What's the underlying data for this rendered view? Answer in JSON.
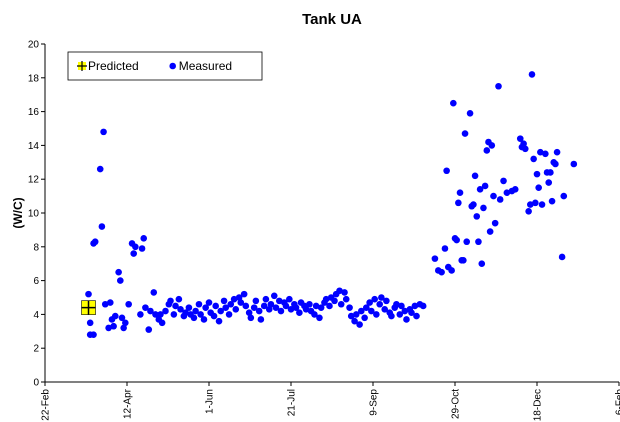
{
  "chart_data": {
    "type": "scatter",
    "title": "Tank UA",
    "y_label": "(W/C)",
    "xlim": [
      0,
      343
    ],
    "xticks": [
      {
        "value": 0,
        "label": "22-Feb"
      },
      {
        "value": 49,
        "label": "12-Apr"
      },
      {
        "value": 98,
        "label": "1-Jun"
      },
      {
        "value": 147,
        "label": "21-Jul"
      },
      {
        "value": 196,
        "label": "9-Sep"
      },
      {
        "value": 245,
        "label": "29-Oct"
      },
      {
        "value": 294,
        "label": "18-Dec"
      },
      {
        "value": 343,
        "label": "6-Feb"
      }
    ],
    "ylim": [
      0,
      20
    ],
    "yticks": [
      0,
      2,
      4,
      6,
      8,
      10,
      12,
      14,
      16,
      18,
      20
    ],
    "grid": false,
    "legend": "upper left",
    "series": [
      {
        "name": "Predicted",
        "color": "#ffff00",
        "marker": "plus-square",
        "x": [
          26
        ],
        "values": [
          4.4
        ]
      },
      {
        "name": "Measured",
        "color": "#0000ff",
        "marker": "circle",
        "x": [
          26,
          27,
          29,
          27,
          29,
          30,
          33,
          35,
          34,
          36,
          39,
          38,
          40,
          41,
          42,
          44,
          45,
          46,
          47,
          48,
          50,
          52,
          53,
          54,
          58,
          59,
          57,
          60,
          62,
          63,
          65,
          66,
          68,
          69,
          70,
          72,
          74,
          75,
          77,
          78,
          80,
          81,
          83,
          84,
          86,
          87,
          89,
          90,
          92,
          93,
          95,
          96,
          98,
          99,
          101,
          102,
          104,
          105,
          107,
          108,
          110,
          111,
          113,
          114,
          116,
          117,
          119,
          120,
          122,
          123,
          125,
          126,
          128,
          129,
          131,
          132,
          134,
          135,
          137,
          138,
          140,
          141,
          143,
          144,
          146,
          147,
          149,
          150,
          152,
          153,
          155,
          156,
          158,
          159,
          161,
          162,
          164,
          165,
          167,
          168,
          170,
          171,
          173,
          174,
          176,
          177,
          179,
          180,
          182,
          183,
          185,
          186,
          188,
          189,
          191,
          192,
          194,
          195,
          197,
          198,
          200,
          201,
          203,
          204,
          206,
          207,
          209,
          210,
          212,
          213,
          215,
          216,
          218,
          219,
          221,
          222,
          224,
          226,
          233,
          235,
          237,
          239,
          240,
          241,
          243,
          244,
          245,
          246,
          247,
          248,
          249,
          250,
          251,
          252,
          254,
          255,
          256,
          257,
          258,
          259,
          260,
          261,
          262,
          263,
          264,
          265,
          266,
          267,
          268,
          269,
          271,
          272,
          274,
          276,
          279,
          281,
          284,
          285,
          286,
          287,
          289,
          290,
          291,
          292,
          293,
          294,
          295,
          296,
          297,
          299,
          300,
          301,
          302,
          303,
          304,
          305,
          306,
          309,
          310,
          316
        ],
        "values": [
          5.2,
          2.8,
          2.8,
          3.5,
          8.2,
          8.3,
          12.6,
          14.8,
          9.2,
          4.6,
          4.7,
          3.2,
          3.7,
          3.3,
          3.9,
          6.5,
          6.0,
          3.8,
          3.2,
          3.5,
          4.6,
          8.2,
          7.6,
          8.0,
          7.9,
          8.5,
          4.0,
          4.4,
          3.1,
          4.2,
          5.3,
          4.0,
          3.7,
          4.0,
          3.5,
          4.2,
          4.6,
          4.8,
          4.0,
          4.5,
          4.9,
          4.3,
          3.9,
          4.1,
          4.4,
          4.0,
          3.8,
          4.2,
          4.6,
          4.0,
          3.7,
          4.4,
          4.7,
          4.1,
          3.9,
          4.5,
          3.6,
          4.2,
          4.8,
          4.4,
          4.0,
          4.6,
          4.9,
          4.3,
          5.0,
          4.7,
          5.2,
          4.5,
          4.1,
          3.8,
          4.4,
          4.8,
          4.2,
          3.7,
          4.5,
          4.9,
          4.3,
          4.6,
          5.1,
          4.4,
          4.8,
          4.2,
          4.7,
          4.5,
          4.9,
          4.3,
          4.6,
          4.4,
          4.1,
          4.7,
          4.5,
          4.3,
          4.6,
          4.2,
          4.0,
          4.5,
          3.8,
          4.4,
          4.7,
          4.9,
          4.5,
          5.0,
          4.8,
          5.2,
          5.4,
          4.6,
          5.3,
          4.9,
          4.4,
          3.9,
          3.6,
          4.0,
          3.4,
          4.2,
          3.8,
          4.4,
          4.7,
          4.2,
          4.9,
          4.0,
          4.6,
          5.0,
          4.3,
          4.8,
          4.1,
          3.9,
          4.4,
          4.6,
          4.0,
          4.5,
          4.2,
          3.7,
          4.3,
          4.1,
          4.5,
          3.9,
          4.6,
          4.5,
          7.3,
          6.6,
          6.5,
          7.9,
          12.5,
          6.8,
          6.6,
          16.5,
          8.5,
          8.4,
          10.6,
          11.2,
          7.2,
          7.2,
          14.7,
          8.3,
          15.9,
          10.4,
          10.5,
          12.2,
          9.8,
          8.3,
          11.4,
          7.0,
          10.3,
          11.6,
          13.7,
          14.2,
          8.9,
          14.0,
          11.0,
          9.4,
          17.5,
          10.8,
          11.9,
          11.2,
          11.3,
          11.4,
          14.4,
          13.9,
          14.1,
          13.8,
          10.1,
          10.5,
          18.2,
          13.2,
          10.6,
          12.3,
          11.5,
          13.6,
          10.5,
          13.5,
          12.4,
          11.8,
          12.4,
          10.7,
          13.0,
          12.9,
          13.6,
          7.4,
          11.0,
          12.9
        ]
      }
    ]
  }
}
